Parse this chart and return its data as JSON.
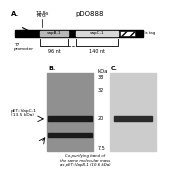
{
  "title": "pDO888",
  "panel_A_label": "A.",
  "panel_B_label": "B.",
  "panel_C_label": "C.",
  "t7_label": "T7\npromoter",
  "atg_label": "ATG",
  "gene1_label": "vapB-1",
  "gene2_label": "vapC-1",
  "his_tag_label": "6xHis tag",
  "nt_label_1": "96 nt",
  "nt_label_2": "140 nt",
  "nt_above": "17.5s",
  "kda_label": "kDa",
  "marker_labels": [
    "38",
    "32",
    "20",
    "7.5"
  ],
  "pet_label": "pET::VapC-1\n(13.5 kDa)",
  "copurify_label": "Co-purifying band of\nthe same molecular mass\nas pET::VapB-1 (10.6 kDa)",
  "bg_color": "#ffffff",
  "gel_bg_B": "#909090",
  "gel_bg_C": "#cccccc",
  "band_color": "#1a1a1a"
}
